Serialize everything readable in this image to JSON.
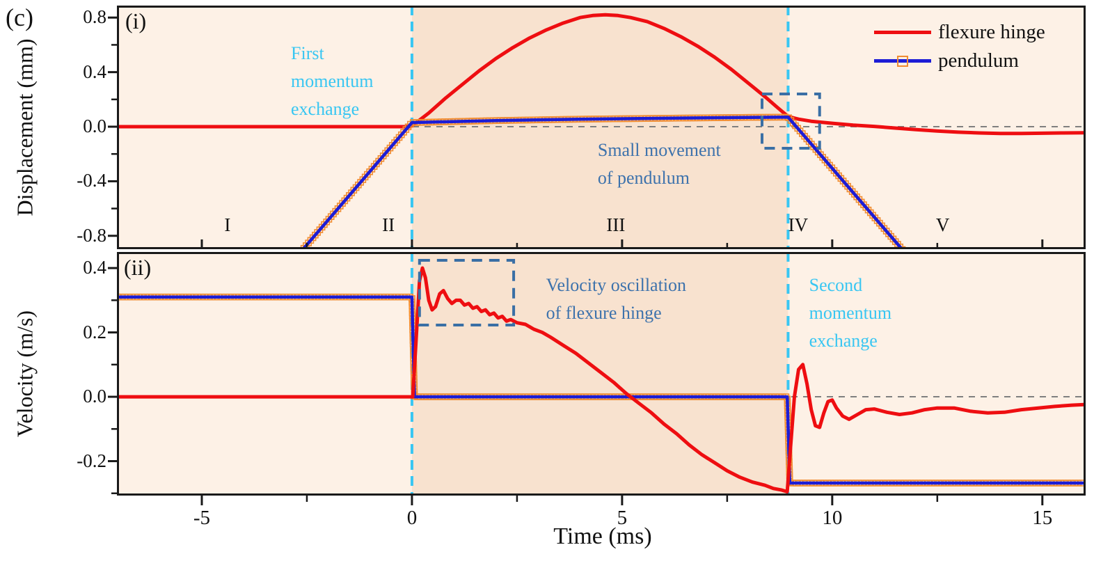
{
  "figure_label": "(c)",
  "xlabel": "Time (ms)",
  "panels": {
    "i": {
      "label": "(i)",
      "ylabel": "Displacement (mm)"
    },
    "ii": {
      "label": "(ii)",
      "ylabel": "Velocity (m/s)"
    }
  },
  "legend": {
    "position": "top-right",
    "items": [
      {
        "label": "flexure hinge",
        "color": "#ee0e11",
        "marker": "none"
      },
      {
        "label": "pendulum",
        "color": "#1c1cd6",
        "marker": "open-square",
        "marker_color": "#f08c32"
      }
    ]
  },
  "colors": {
    "flexure_red": "#ee0e11",
    "pendulum_blue": "#1c1cd6",
    "marker_orange": "#f08c32",
    "cyan_event": "#38c6f2",
    "annotation_blue": "#3d72ac",
    "box_navy": "#3a6fa5",
    "zero_line_gray": "#7f7f7f",
    "bg_light": "#fdf1e6",
    "bg_dark": "#f8e2cf",
    "frame": "#1a1a1a"
  },
  "chart_data": [
    {
      "type": "line",
      "panel": "i",
      "ylabel": "Displacement (mm)",
      "xlabel": "Time (ms)",
      "xlim": [
        -7.02,
        16.03
      ],
      "ylim": [
        -0.898,
        0.888
      ],
      "grid": false,
      "zero_line": 0.0,
      "event_lines_x": [
        0,
        8.95
      ],
      "shading": [
        {
          "from": -7.02,
          "to": 0,
          "color": "bg_light"
        },
        {
          "from": 0,
          "to": 8.95,
          "color": "bg_dark"
        },
        {
          "from": 8.95,
          "to": 16.03,
          "color": "bg_light"
        }
      ],
      "xticks": {
        "major": [
          -5,
          0,
          5,
          10,
          15
        ],
        "minor": [
          -2.5,
          2.5,
          7.5,
          12.5
        ],
        "labels": [
          "-5",
          "0",
          "5",
          "10",
          "15"
        ]
      },
      "yticks": {
        "major": [
          0.8,
          0.4,
          0.0,
          -0.4,
          -0.8
        ],
        "minor": [
          0.6,
          0.2,
          -0.2,
          -0.6
        ],
        "labels": [
          "0.8",
          "0.4",
          "0.0",
          "-0.4",
          "-0.8"
        ]
      },
      "series": [
        {
          "name": "flexure hinge",
          "color": "flexure_red",
          "width": 5,
          "marker": "none",
          "points": [
            [
              -7,
              0
            ],
            [
              -0.05,
              0
            ],
            [
              0,
              0.005
            ],
            [
              0.4,
              0.1
            ],
            [
              0.8,
              0.21
            ],
            [
              1.2,
              0.31
            ],
            [
              1.6,
              0.41
            ],
            [
              2.0,
              0.5
            ],
            [
              2.4,
              0.58
            ],
            [
              2.8,
              0.65
            ],
            [
              3.2,
              0.71
            ],
            [
              3.6,
              0.76
            ],
            [
              4.0,
              0.8
            ],
            [
              4.3,
              0.815
            ],
            [
              4.6,
              0.82
            ],
            [
              4.9,
              0.815
            ],
            [
              5.2,
              0.8
            ],
            [
              5.6,
              0.77
            ],
            [
              6.0,
              0.72
            ],
            [
              6.4,
              0.66
            ],
            [
              6.8,
              0.59
            ],
            [
              7.2,
              0.51
            ],
            [
              7.6,
              0.42
            ],
            [
              8.0,
              0.32
            ],
            [
              8.4,
              0.22
            ],
            [
              8.7,
              0.14
            ],
            [
              8.95,
              0.075
            ],
            [
              9.2,
              0.055
            ],
            [
              9.5,
              0.04
            ],
            [
              10.0,
              0.025
            ],
            [
              10.5,
              0.012
            ],
            [
              11.0,
              0.002
            ],
            [
              11.5,
              -0.01
            ],
            [
              12.0,
              -0.022
            ],
            [
              12.5,
              -0.032
            ],
            [
              13.0,
              -0.04
            ],
            [
              13.5,
              -0.046
            ],
            [
              14.0,
              -0.05
            ],
            [
              14.5,
              -0.05
            ],
            [
              15.0,
              -0.048
            ],
            [
              15.5,
              -0.046
            ],
            [
              16.0,
              -0.045
            ]
          ]
        },
        {
          "name": "pendulum",
          "color": "pendulum_blue",
          "width": 4.5,
          "marker": "square",
          "marker_color": "marker_orange",
          "points": [
            [
              -2.68,
              -0.93
            ],
            [
              0,
              0.03
            ],
            [
              2,
              0.045
            ],
            [
              4,
              0.055
            ],
            [
              6,
              0.062
            ],
            [
              8,
              0.068
            ],
            [
              8.95,
              0.07
            ],
            [
              11.75,
              -0.93
            ]
          ]
        }
      ],
      "boxes": [
        {
          "x0": 8.33,
          "x1": 9.7,
          "y0": -0.158,
          "y1": 0.24
        }
      ],
      "region_labels": [
        {
          "text": "I",
          "x": -4.39,
          "y": -0.72
        },
        {
          "text": "II",
          "x": -0.56,
          "y": -0.72
        },
        {
          "text": "III",
          "x": 4.85,
          "y": -0.72
        },
        {
          "text": "IV",
          "x": 9.19,
          "y": -0.72
        },
        {
          "text": "V",
          "x": 12.63,
          "y": -0.72
        }
      ],
      "annotations": [
        {
          "id": "first-momentum-exchange",
          "lines": [
            "First",
            "momentum",
            "exchange"
          ],
          "color": "cyan_event",
          "x": -2.88,
          "y": 0.64
        },
        {
          "id": "small-movement-of-pendulum",
          "lines": [
            "Small movement",
            "of pendulum"
          ],
          "color": "annotation_blue",
          "x": 4.42,
          "y": -0.07
        }
      ]
    },
    {
      "type": "line",
      "panel": "ii",
      "ylabel": "Velocity (m/s)",
      "xlabel": "Time (ms)",
      "xlim": [
        -7.02,
        16.03
      ],
      "ylim": [
        -0.307,
        0.45
      ],
      "grid": false,
      "zero_line": 0.0,
      "event_lines_x": [
        0,
        8.95
      ],
      "shading": [
        {
          "from": -7.02,
          "to": 0,
          "color": "bg_light"
        },
        {
          "from": 0,
          "to": 8.95,
          "color": "bg_dark"
        },
        {
          "from": 8.95,
          "to": 16.03,
          "color": "bg_light"
        }
      ],
      "xticks": {
        "major": [
          -5,
          0,
          5,
          10,
          15
        ],
        "minor": [
          -2.5,
          2.5,
          7.5,
          12.5
        ],
        "labels": [
          "-5",
          "0",
          "5",
          "10",
          "15"
        ]
      },
      "yticks": {
        "major": [
          0.4,
          0.2,
          0.0,
          -0.2
        ],
        "minor": [
          0.3,
          0.1,
          -0.1,
          -0.3
        ],
        "labels": [
          "0.4",
          "0.2",
          "0.0",
          "-0.2"
        ]
      },
      "series": [
        {
          "name": "pendulum",
          "color": "pendulum_blue",
          "width": 4.5,
          "marker": "square",
          "marker_color": "marker_orange",
          "points": [
            [
              -7,
              0.31
            ],
            [
              0.0,
              0.31
            ],
            [
              0.06,
              0.0
            ],
            [
              8.93,
              0.0
            ],
            [
              8.99,
              -0.268
            ],
            [
              16.0,
              -0.268
            ]
          ]
        },
        {
          "name": "flexure hinge",
          "color": "flexure_red",
          "width": 5,
          "marker": "none",
          "points": [
            [
              -7,
              0
            ],
            [
              0.02,
              0
            ],
            [
              0.1,
              0.18
            ],
            [
              0.18,
              0.36
            ],
            [
              0.25,
              0.4
            ],
            [
              0.32,
              0.37
            ],
            [
              0.4,
              0.3
            ],
            [
              0.48,
              0.27
            ],
            [
              0.56,
              0.28
            ],
            [
              0.66,
              0.32
            ],
            [
              0.75,
              0.33
            ],
            [
              0.85,
              0.305
            ],
            [
              0.95,
              0.29
            ],
            [
              1.05,
              0.3
            ],
            [
              1.15,
              0.3
            ],
            [
              1.25,
              0.285
            ],
            [
              1.35,
              0.29
            ],
            [
              1.45,
              0.275
            ],
            [
              1.55,
              0.28
            ],
            [
              1.65,
              0.265
            ],
            [
              1.75,
              0.27
            ],
            [
              1.85,
              0.255
            ],
            [
              1.95,
              0.26
            ],
            [
              2.05,
              0.245
            ],
            [
              2.15,
              0.25
            ],
            [
              2.25,
              0.235
            ],
            [
              2.35,
              0.24
            ],
            [
              2.5,
              0.23
            ],
            [
              2.7,
              0.225
            ],
            [
              2.9,
              0.21
            ],
            [
              3.1,
              0.2
            ],
            [
              3.3,
              0.185
            ],
            [
              3.6,
              0.16
            ],
            [
              3.9,
              0.135
            ],
            [
              4.2,
              0.105
            ],
            [
              4.5,
              0.075
            ],
            [
              4.8,
              0.045
            ],
            [
              5.1,
              0.01
            ],
            [
              5.4,
              -0.02
            ],
            [
              5.7,
              -0.05
            ],
            [
              6.0,
              -0.085
            ],
            [
              6.3,
              -0.115
            ],
            [
              6.6,
              -0.15
            ],
            [
              6.9,
              -0.18
            ],
            [
              7.2,
              -0.205
            ],
            [
              7.5,
              -0.23
            ],
            [
              7.8,
              -0.25
            ],
            [
              8.1,
              -0.265
            ],
            [
              8.4,
              -0.275
            ],
            [
              8.6,
              -0.285
            ],
            [
              8.8,
              -0.29
            ],
            [
              8.93,
              -0.295
            ],
            [
              9.0,
              -0.17
            ],
            [
              9.1,
              0.0
            ],
            [
              9.2,
              0.085
            ],
            [
              9.3,
              0.1
            ],
            [
              9.4,
              0.04
            ],
            [
              9.5,
              -0.04
            ],
            [
              9.6,
              -0.09
            ],
            [
              9.7,
              -0.095
            ],
            [
              9.8,
              -0.05
            ],
            [
              9.9,
              -0.015
            ],
            [
              10.0,
              -0.01
            ],
            [
              10.1,
              -0.035
            ],
            [
              10.25,
              -0.06
            ],
            [
              10.4,
              -0.07
            ],
            [
              10.6,
              -0.055
            ],
            [
              10.8,
              -0.04
            ],
            [
              11.0,
              -0.038
            ],
            [
              11.3,
              -0.048
            ],
            [
              11.6,
              -0.055
            ],
            [
              11.9,
              -0.05
            ],
            [
              12.2,
              -0.04
            ],
            [
              12.5,
              -0.035
            ],
            [
              12.9,
              -0.035
            ],
            [
              13.3,
              -0.045
            ],
            [
              13.7,
              -0.05
            ],
            [
              14.1,
              -0.048
            ],
            [
              14.5,
              -0.04
            ],
            [
              14.9,
              -0.035
            ],
            [
              15.3,
              -0.03
            ],
            [
              15.7,
              -0.026
            ],
            [
              16.0,
              -0.024
            ]
          ]
        }
      ],
      "boxes": [
        {
          "x0": 0.18,
          "x1": 2.42,
          "y0": 0.223,
          "y1": 0.424
        }
      ],
      "region_labels": [],
      "annotations": [
        {
          "id": "velocity-oscillation-of-flexure-hinge",
          "lines": [
            "Velocity oscillation",
            "of flexure hinge"
          ],
          "color": "annotation_blue",
          "x": 3.19,
          "y": 0.39
        },
        {
          "id": "second-momentum-exchange",
          "lines": [
            "Second",
            "momentum",
            "exchange"
          ],
          "color": "cyan_event",
          "x": 9.45,
          "y": 0.39
        }
      ]
    }
  ]
}
